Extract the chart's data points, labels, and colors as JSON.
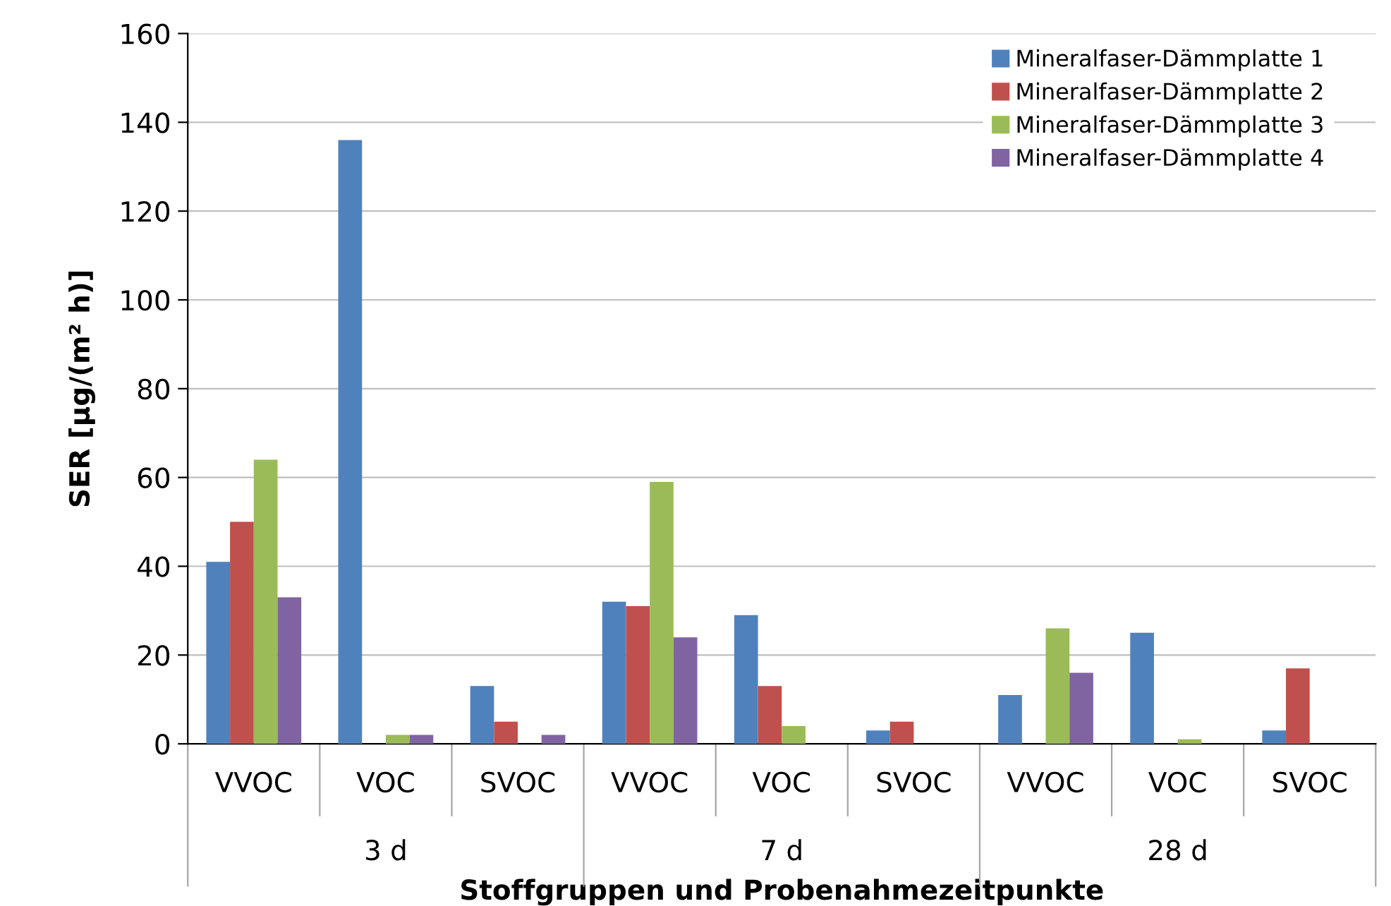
{
  "chart_data": {
    "type": "bar",
    "xlabel": "Stoffgruppen und Probenahmezeitpunkte",
    "ylabel": "SER [µg/(m² h)]",
    "categories": [
      "VVOC",
      "VOC",
      "SVOC",
      "VVOC",
      "VOC",
      "SVOC",
      "VVOC",
      "VOC",
      "SVOC"
    ],
    "annotations": [
      "3 d",
      "7 d",
      "28 d"
    ],
    "series": [
      {
        "name": "Mineralfaser-Dämmplatte 1",
        "color": "#4f81bd",
        "values": [
          41,
          136,
          13,
          32,
          29,
          3,
          11,
          25,
          3
        ]
      },
      {
        "name": "Mineralfaser-Dämmplatte 2",
        "color": "#c0504d",
        "values": [
          50,
          0,
          5,
          31,
          13,
          5,
          0,
          0,
          17
        ]
      },
      {
        "name": "Mineralfaser-Dämmplatte 3",
        "color": "#9bbb59",
        "values": [
          64,
          2,
          0,
          59,
          4,
          0,
          26,
          1,
          0
        ]
      },
      {
        "name": "Mineralfaser-Dämmplatte 4",
        "color": "#8064a2",
        "values": [
          33,
          2,
          2,
          24,
          0,
          0,
          16,
          0,
          0
        ]
      }
    ],
    "ylim": [
      0,
      160
    ],
    "yticks": [
      0,
      20,
      40,
      60,
      80,
      100,
      120,
      140,
      160
    ],
    "grid": "y",
    "legend": "top right"
  }
}
